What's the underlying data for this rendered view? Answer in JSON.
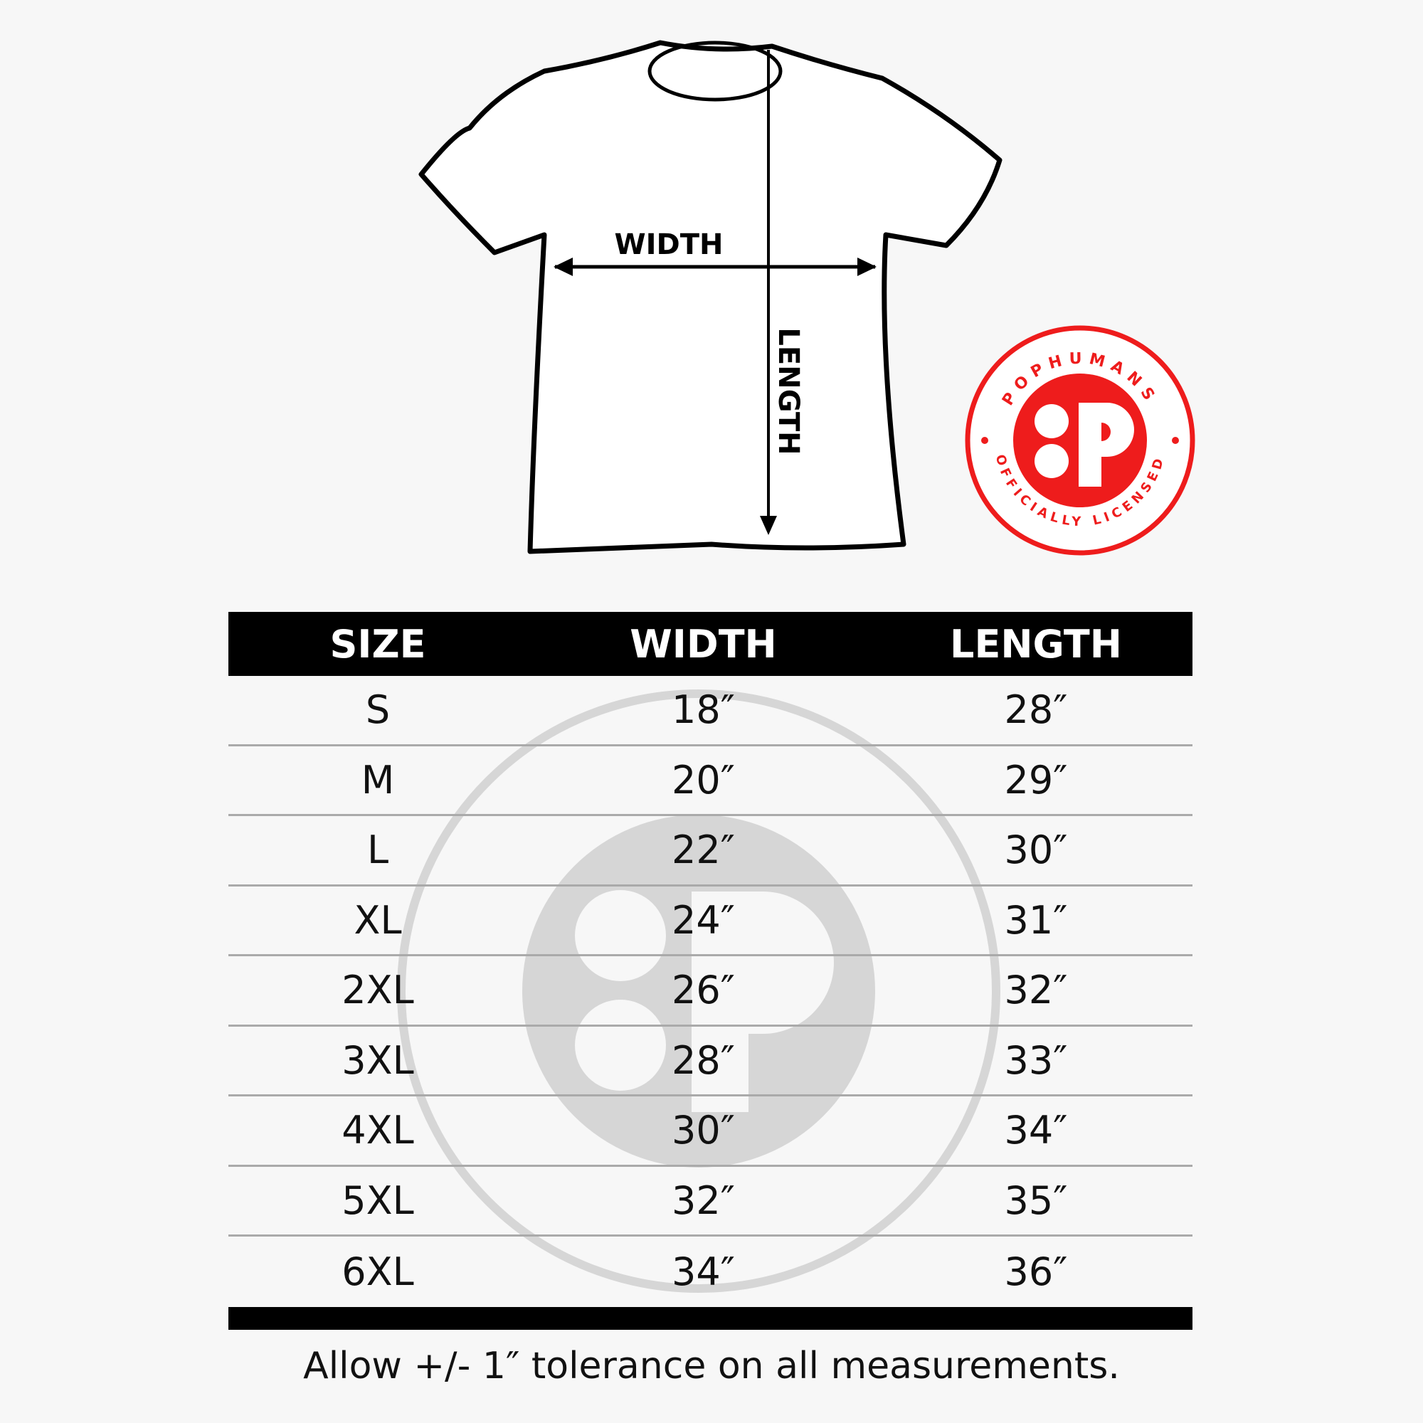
{
  "diagram": {
    "width_label": "WIDTH",
    "length_label": "LENGTH"
  },
  "logo": {
    "brand": "POPHUMANS",
    "tagline": "OFFICIALLY LICENSED",
    "color": "#ee1c1c"
  },
  "table": {
    "headers": [
      "SIZE",
      "WIDTH",
      "LENGTH"
    ],
    "rows": [
      [
        "S",
        "18″",
        "28″"
      ],
      [
        "M",
        "20″",
        "29″"
      ],
      [
        "L",
        "22″",
        "30″"
      ],
      [
        "XL",
        "24″",
        "31″"
      ],
      [
        "2XL",
        "26″",
        "32″"
      ],
      [
        "3XL",
        "28″",
        "33″"
      ],
      [
        "4XL",
        "30″",
        "34″"
      ],
      [
        "5XL",
        "32″",
        "35″"
      ],
      [
        "6XL",
        "34″",
        "36″"
      ]
    ]
  },
  "footer": "Allow +/- 1″ tolerance on all measurements."
}
